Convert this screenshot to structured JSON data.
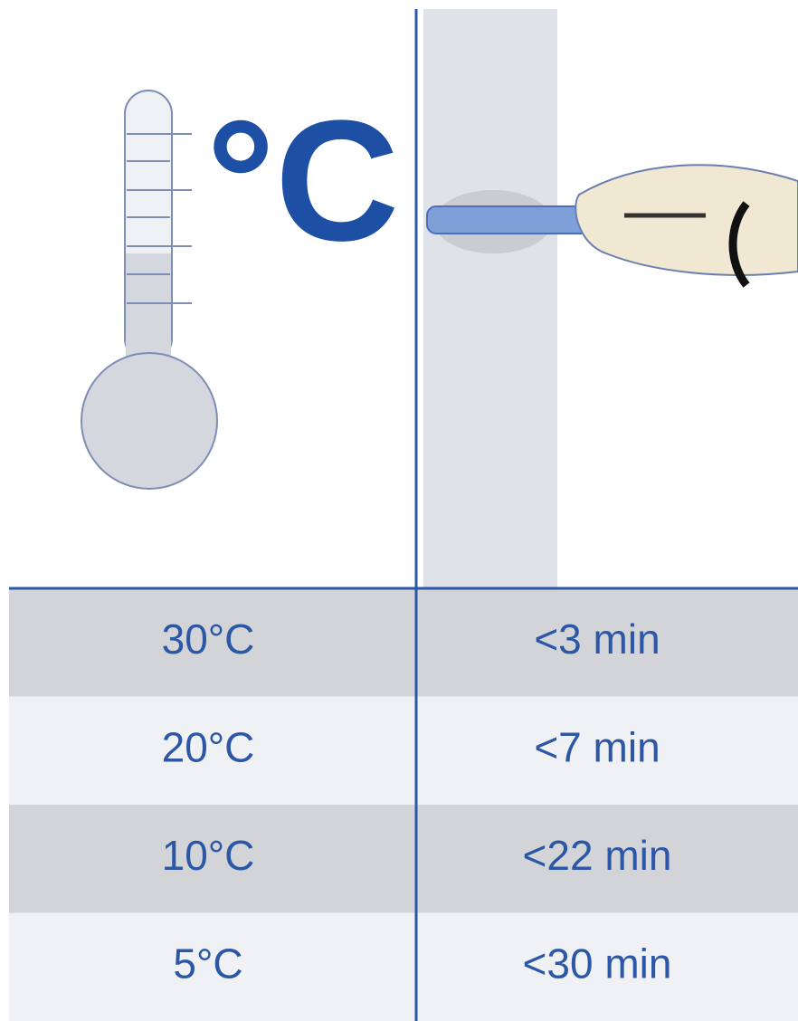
{
  "header": {
    "unit": "°C"
  },
  "table": {
    "rows": [
      [
        "30°C",
        "<3 min"
      ],
      [
        "20°C",
        "<7 min"
      ],
      [
        "10°C",
        "<22 min"
      ],
      [
        "5°C",
        "<30 min"
      ]
    ]
  }
}
